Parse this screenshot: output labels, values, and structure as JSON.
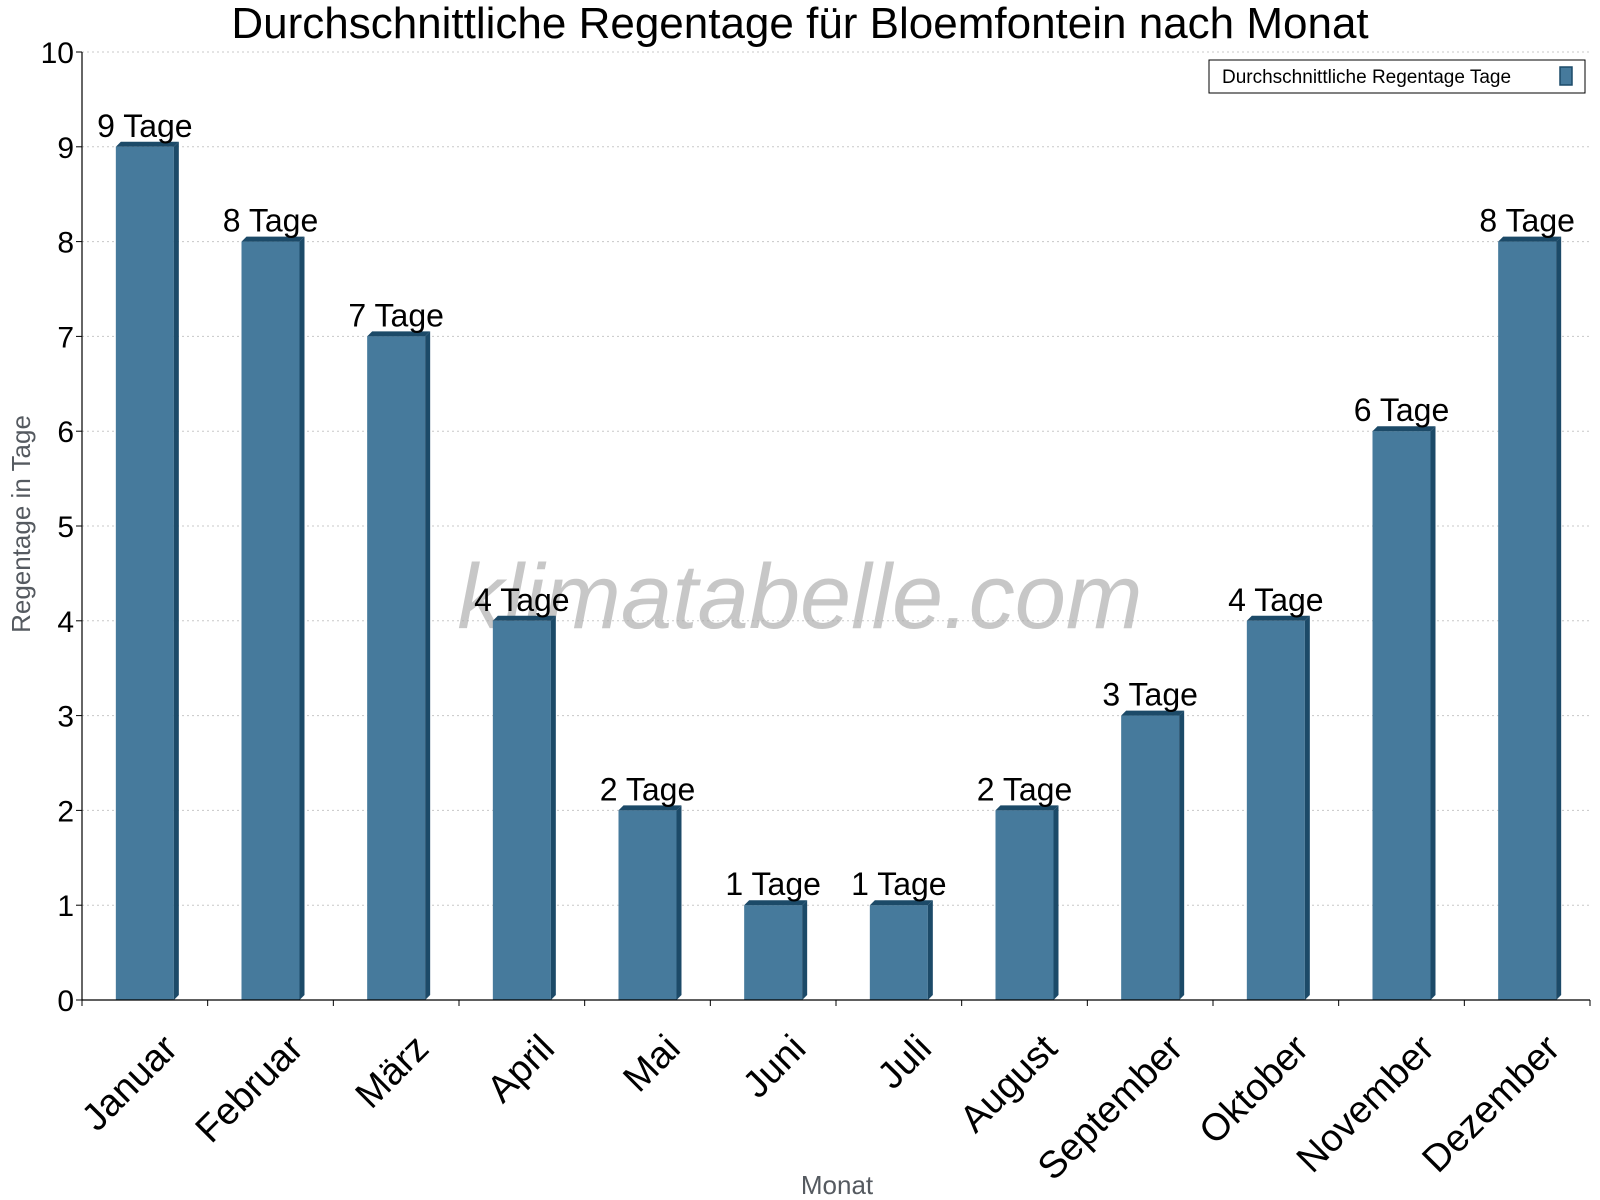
{
  "chart_data": {
    "type": "bar",
    "title": "Durchschnittliche Regentage für Bloemfontein nach Monat",
    "xlabel": "Monat",
    "ylabel": "Regentage in Tage",
    "ylim": [
      0,
      10
    ],
    "yticks": [
      0,
      1,
      2,
      3,
      4,
      5,
      6,
      7,
      8,
      9,
      10
    ],
    "grid": true,
    "legend_position": "top-right",
    "categories": [
      "Januar",
      "Februar",
      "März",
      "April",
      "Mai",
      "Juni",
      "Juli",
      "August",
      "September",
      "Oktober",
      "November",
      "Dezember"
    ],
    "series": [
      {
        "name": "Durchschnittliche Regentage Tage",
        "color": "#467a9c",
        "values": [
          9,
          8,
          7,
          4,
          2,
          1,
          1,
          2,
          3,
          4,
          6,
          8
        ],
        "labels": [
          "9 Tage",
          "8 Tage",
          "7 Tage",
          "4 Tage",
          "2 Tage",
          "1 Tage",
          "1 Tage",
          "2 Tage",
          "3 Tage",
          "4 Tage",
          "6 Tage",
          "8 Tage"
        ]
      }
    ],
    "watermark": "klimatabelle.com"
  }
}
